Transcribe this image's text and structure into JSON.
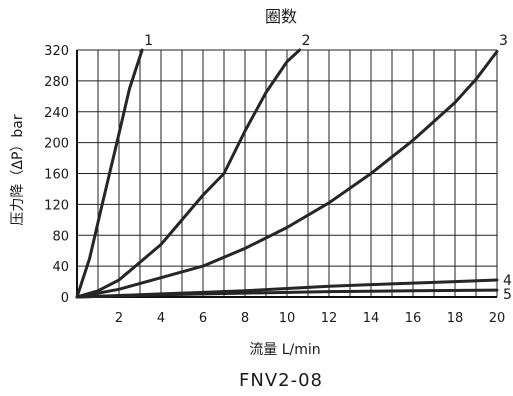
{
  "chart_data": {
    "type": "line",
    "title": "圈数",
    "xlabel": "流量 L/min",
    "ylabel": "压力降（ΔP）bar",
    "caption": "FNV2-08",
    "xlim": [
      0,
      20
    ],
    "ylim": [
      0,
      320
    ],
    "x_ticks": [
      2,
      4,
      6,
      8,
      10,
      12,
      14,
      16,
      18,
      20
    ],
    "y_ticks": [
      0,
      40,
      80,
      120,
      160,
      200,
      240,
      280,
      320
    ],
    "grid": true,
    "series": [
      {
        "name": "1",
        "points": [
          [
            0,
            0
          ],
          [
            0.6,
            50
          ],
          [
            1.2,
            120
          ],
          [
            1.9,
            200
          ],
          [
            2.5,
            270
          ],
          [
            3.1,
            320
          ]
        ]
      },
      {
        "name": "2",
        "points": [
          [
            0,
            0
          ],
          [
            1,
            8
          ],
          [
            2,
            22
          ],
          [
            4,
            68
          ],
          [
            6,
            132
          ],
          [
            7,
            160
          ],
          [
            8,
            215
          ],
          [
            9,
            265
          ],
          [
            10,
            305
          ],
          [
            10.6,
            320
          ]
        ]
      },
      {
        "name": "3",
        "points": [
          [
            0,
            0
          ],
          [
            2,
            10
          ],
          [
            4,
            25
          ],
          [
            6,
            40
          ],
          [
            8,
            63
          ],
          [
            10,
            90
          ],
          [
            12,
            122
          ],
          [
            14,
            160
          ],
          [
            16,
            203
          ],
          [
            18,
            252
          ],
          [
            19,
            282
          ],
          [
            20,
            318
          ]
        ]
      },
      {
        "name": "4",
        "points": [
          [
            0,
            0
          ],
          [
            2,
            2
          ],
          [
            4,
            4
          ],
          [
            6,
            6
          ],
          [
            8,
            8
          ],
          [
            10,
            11
          ],
          [
            12,
            14
          ],
          [
            14,
            16
          ],
          [
            16,
            18
          ],
          [
            18,
            20
          ],
          [
            20,
            22
          ]
        ]
      },
      {
        "name": "5",
        "points": [
          [
            0,
            0
          ],
          [
            4,
            3
          ],
          [
            8,
            5
          ],
          [
            12,
            7
          ],
          [
            16,
            8
          ],
          [
            20,
            9
          ]
        ]
      }
    ]
  }
}
